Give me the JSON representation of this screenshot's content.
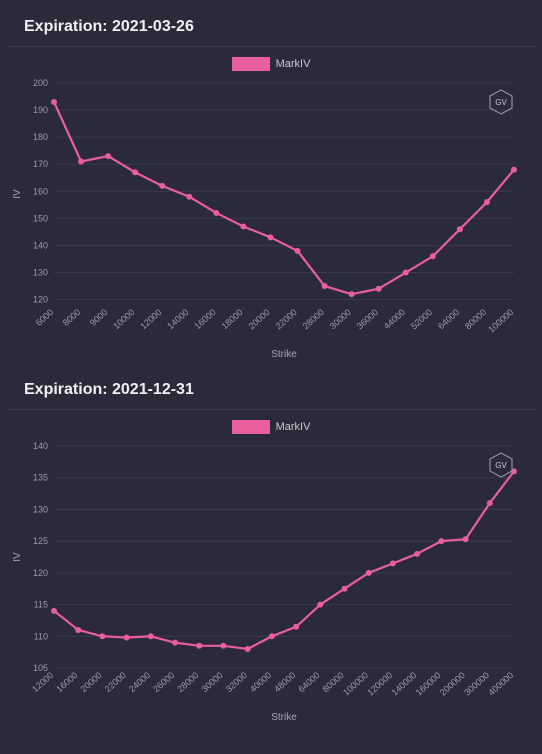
{
  "background_color": "#2a2a3a",
  "grid_color": "#3b3b4b",
  "text_color": "#e8e8ea",
  "axis_text_color": "#9a9aaa",
  "accent_color": "#e85f9b",
  "series_name": "MarkIV",
  "ylabel": "IV",
  "xlabel": "Strike",
  "gv_badge": "GV",
  "charts": [
    {
      "id": "chart1",
      "title": "Expiration: 2021-03-26",
      "type": "line",
      "x_ticks": [
        6000,
        8000,
        9000,
        10000,
        12000,
        14000,
        16000,
        18000,
        20000,
        22000,
        28000,
        30000,
        36000,
        44000,
        52000,
        64000,
        80000,
        100000
      ],
      "y_ticks": [
        120,
        130,
        140,
        150,
        160,
        170,
        180,
        190,
        200
      ],
      "ylim": [
        118,
        200
      ],
      "series": [
        {
          "name": "MarkIV",
          "color": "#e85f9b",
          "x": [
            6000,
            8000,
            9000,
            10000,
            12000,
            14000,
            16000,
            18000,
            20000,
            22000,
            28000,
            30000,
            36000,
            44000,
            52000,
            64000,
            80000,
            100000
          ],
          "y": [
            193,
            171,
            173,
            167,
            162,
            158,
            152,
            147,
            143,
            138,
            125,
            122,
            124,
            130,
            136,
            146,
            156,
            168
          ],
          "marker": "circle",
          "marker_size": 3
        }
      ]
    },
    {
      "id": "chart2",
      "title": "Expiration: 2021-12-31",
      "type": "line",
      "x_ticks": [
        12000,
        16000,
        20000,
        22000,
        24000,
        26000,
        28000,
        30000,
        32000,
        40000,
        48000,
        64000,
        80000,
        100000,
        120000,
        140000,
        160000,
        200000,
        300000,
        400000
      ],
      "y_ticks": [
        105,
        110,
        115,
        120,
        125,
        130,
        135,
        140
      ],
      "ylim": [
        105,
        140
      ],
      "series": [
        {
          "name": "MarkIV",
          "color": "#e85f9b",
          "x": [
            12000,
            16000,
            20000,
            22000,
            24000,
            26000,
            28000,
            30000,
            32000,
            40000,
            48000,
            64000,
            80000,
            100000,
            120000,
            140000,
            160000,
            200000,
            300000,
            400000
          ],
          "y": [
            114,
            111,
            110,
            109.8,
            110,
            109,
            108.5,
            108.5,
            108,
            110,
            111.5,
            115,
            117.5,
            120,
            121.5,
            123,
            125,
            125.3,
            131,
            136
          ],
          "marker": "circle",
          "marker_size": 3
        }
      ]
    }
  ]
}
